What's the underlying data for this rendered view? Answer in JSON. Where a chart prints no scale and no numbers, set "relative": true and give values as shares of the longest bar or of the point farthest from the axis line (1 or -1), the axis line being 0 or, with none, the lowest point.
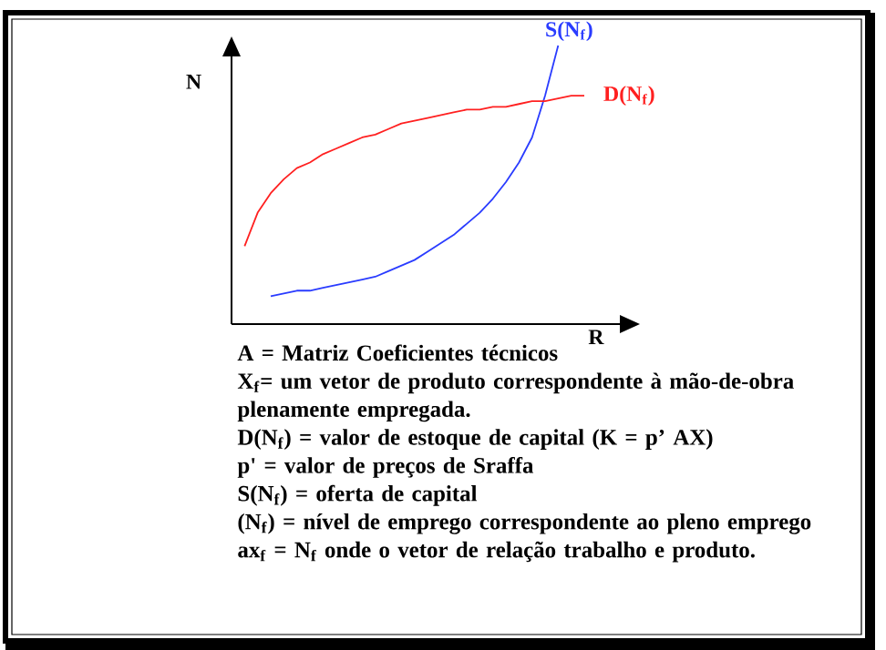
{
  "chart_data": {
    "type": "line",
    "relative": true,
    "xlabel": "R",
    "ylabel": "N",
    "legend": false,
    "marker": "none",
    "line_style": "solid",
    "categories": [
      null,
      null,
      null,
      null,
      null,
      null,
      null,
      null,
      null,
      null,
      null,
      null,
      null,
      null,
      null,
      null,
      null,
      null,
      null,
      null,
      null,
      null,
      null,
      null,
      null,
      null,
      null,
      null,
      null,
      null,
      null
    ],
    "series": [
      {
        "name": "S(N$_{f}$)",
        "color": "#2a3cff",
        "values": [
          null,
          null,
          null,
          0.1,
          0.11,
          0.12,
          0.12,
          0.13,
          0.14,
          0.15,
          0.16,
          0.17,
          0.19,
          0.21,
          0.23,
          0.26,
          0.29,
          0.32,
          0.36,
          0.4,
          0.45,
          0.51,
          0.58,
          0.67,
          0.82,
          1.0,
          null,
          null,
          null,
          null,
          null
        ]
      },
      {
        "name": "D(N$_{f}$)",
        "color": "#ff2020",
        "values": [
          null,
          0.28,
          0.4,
          0.47,
          0.52,
          0.56,
          0.58,
          0.61,
          0.63,
          0.65,
          0.67,
          0.68,
          0.7,
          0.72,
          0.73,
          0.74,
          0.75,
          0.76,
          0.77,
          0.77,
          0.78,
          0.78,
          0.79,
          0.8,
          0.8,
          0.81,
          0.82,
          0.82,
          null,
          null,
          null
        ]
      }
    ],
    "annotations": [
      "A = Matriz Coeficientes técnicos",
      "X$_{f}$= um vetor de produto correspondente à mão-de-obra plenamente empregada.",
      "D(N$_{f}$) = valor de estoque de capital (K = p’ AX)",
      "p' = valor de preços de Sraffa",
      "S(N$_{f}$) = oferta de capital",
      "(N$_{f}$) = nível de emprego correspondente ao pleno emprego",
      "ax$_{f}$ = N$_{f}$  onde o vetor de relação trabalho e produto."
    ]
  }
}
